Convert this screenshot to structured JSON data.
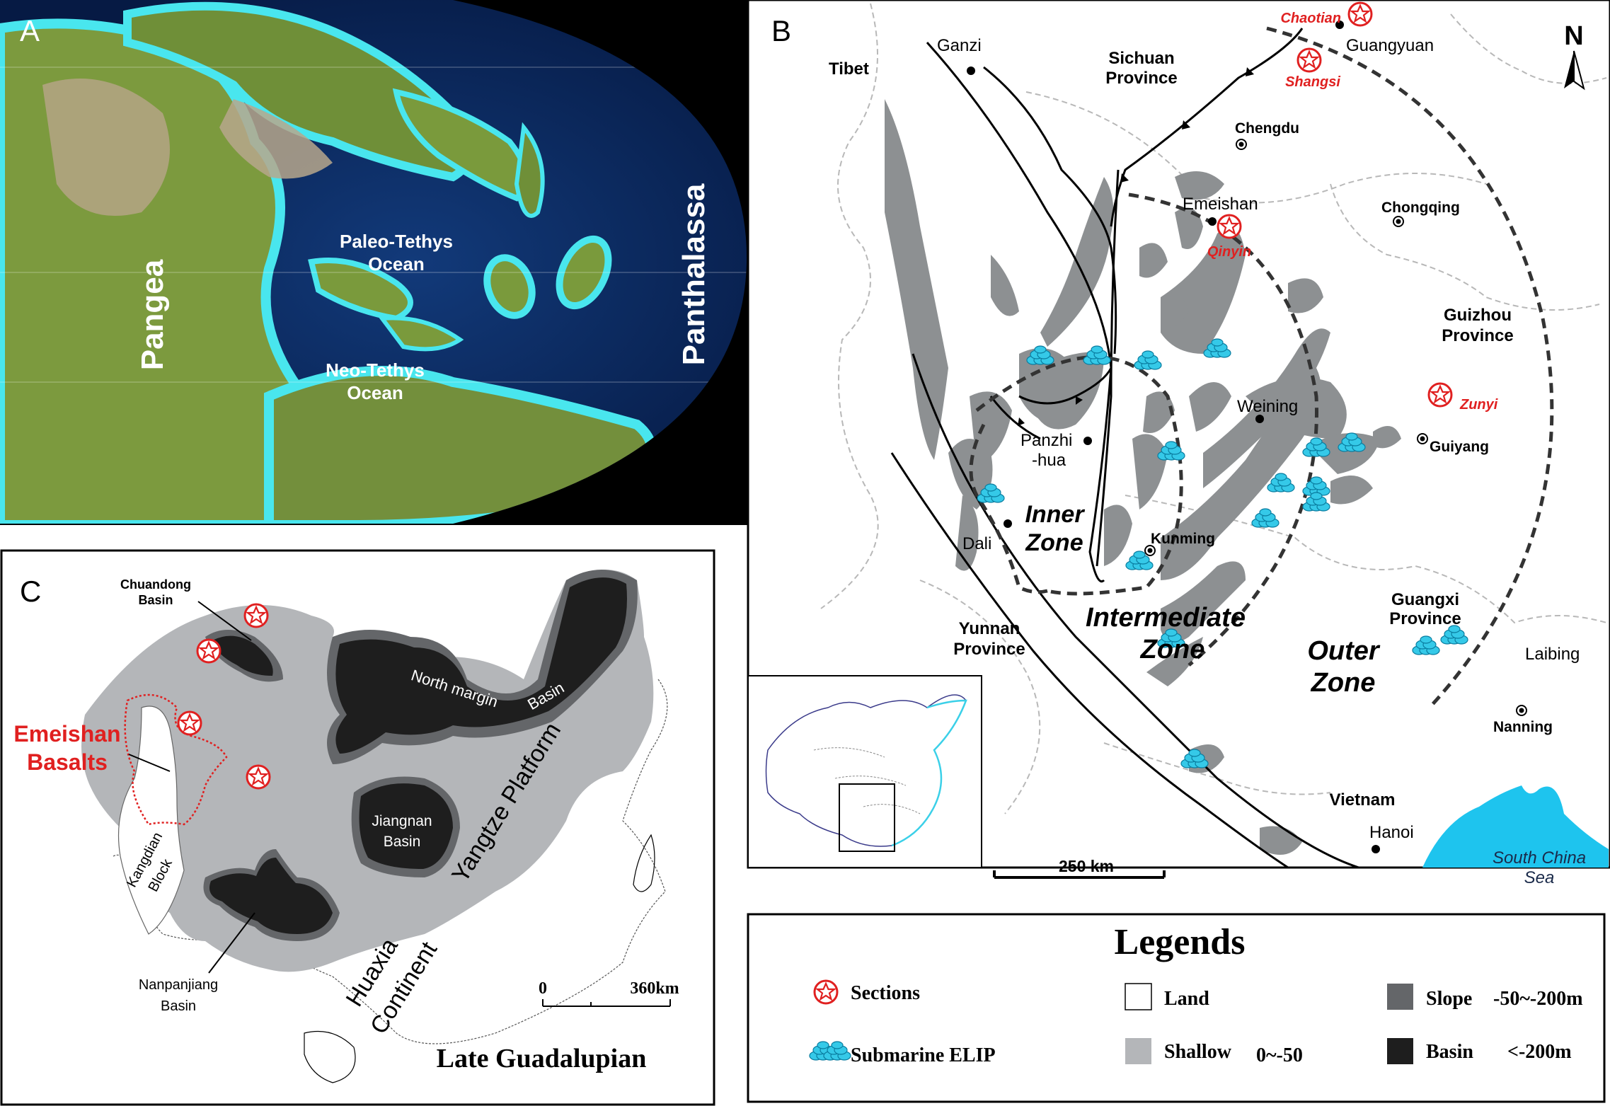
{
  "panel_a": {
    "letter": "A",
    "labels": {
      "pangea": "Pangea",
      "paleo_tethys_1": "Paleo-Tethys",
      "paleo_tethys_2": "Ocean",
      "neo_tethys_1": "Neo-Tethys",
      "neo_tethys_2": "Ocean",
      "panthalassa": "Panthalassa"
    },
    "colors": {
      "ocean": "#0c2a5e",
      "land": "#7a9a3c",
      "shallow": "#49e6ee",
      "space": "#000000"
    }
  },
  "panel_b": {
    "letter": "B",
    "north": "N",
    "places": {
      "tibet": "Tibet",
      "ganzi": "Ganzi",
      "sichuan_1": "Sichuan",
      "sichuan_2": "Province",
      "guangyuan": "Guangyuan",
      "chengdu": "Chengdu",
      "emeishan": "Emeishan",
      "chongqing": "Chongqing",
      "guizhou_1": "Guizhou",
      "guizhou_2": "Province",
      "weining": "Weining",
      "guiyang": "Guiyang",
      "panzhihua_1": "Panzhi",
      "panzhihua_2": "-hua",
      "dali": "Dali",
      "kunming": "Kunming",
      "yunnan_1": "Yunnan",
      "yunnan_2": "Province",
      "guangxi_1": "Guangxi",
      "guangxi_2": "Province",
      "laibing": "Laibing",
      "nanning": "Nanning",
      "vietnam": "Vietnam",
      "hanoi": "Hanoi",
      "south_china_sea_1": "South China",
      "south_china_sea_2": "Sea"
    },
    "sections": {
      "chaotian": "Chaotian",
      "shangsi": "Shangsi",
      "qinyin": "Qinyin",
      "zunyi": "Zunyi"
    },
    "zones": {
      "inner_1": "Inner",
      "inner_2": "Zone",
      "intermediate_1": "Intermediate",
      "intermediate_2": "Zone",
      "outer_1": "Outer",
      "outer_2": "Zone"
    },
    "scale": "250 km"
  },
  "panel_c": {
    "letter": "C",
    "labels": {
      "chuandong_1": "Chuandong",
      "chuandong_2": "Basin",
      "emeishan_1": "Emeishan",
      "emeishan_2": "Basalts",
      "north_margin_1": "North margin",
      "north_margin_2": "Basin",
      "jiangnan_1": "Jiangnan",
      "jiangnan_2": "Basin",
      "yangtze": "Yangtze Platform",
      "kangdian_1": "Kangdian",
      "kangdian_2": "Block",
      "nanpanjiang_1": "Nanpanjiang",
      "nanpanjiang_2": "Basin",
      "huaxia_1": "Huaxia",
      "huaxia_2": "Continent",
      "scale_0": "0",
      "scale_max": "360km",
      "period": "Late Guadalupian"
    }
  },
  "legend": {
    "title": "Legends",
    "items": {
      "sections": "Sections",
      "elip": "Submarine ELIP",
      "land": "Land",
      "shallow": "Shallow",
      "shallow_range": "0~-50",
      "slope": "Slope",
      "slope_range": "-50~-200m",
      "basin": "Basin",
      "basin_range": "<-200m"
    },
    "colors": {
      "section_red": "#e02020",
      "elip_cyan": "#35c9e8",
      "land": "#ffffff",
      "shallow": "#b4b6b9",
      "slope": "#646669",
      "basin": "#1e1e1e"
    }
  }
}
